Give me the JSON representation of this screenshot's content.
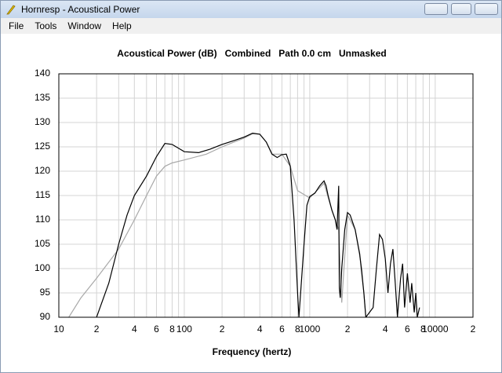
{
  "window": {
    "title": "Hornresp - Acoustical Power",
    "menu": [
      "File",
      "Tools",
      "Window",
      "Help"
    ]
  },
  "chart_data": {
    "type": "line",
    "title": "Acoustical Power (dB)   Combined   Path 0.0 cm   Unmasked",
    "xlabel": "Frequency (hertz)",
    "xscale": "log",
    "grid": true,
    "xlim": [
      10,
      20000
    ],
    "ylim": [
      90,
      140
    ],
    "xticks": [
      10,
      {
        "value": 20,
        "label": "2"
      },
      {
        "value": 40,
        "label": "4"
      },
      {
        "value": 60,
        "label": "6"
      },
      {
        "value": 80,
        "label": "8"
      },
      100,
      {
        "value": 200,
        "label": "2"
      },
      {
        "value": 400,
        "label": "4"
      },
      {
        "value": 600,
        "label": "6"
      },
      {
        "value": 800,
        "label": "8"
      },
      1000,
      {
        "value": 2000,
        "label": "2"
      },
      {
        "value": 4000,
        "label": "4"
      },
      {
        "value": 6000,
        "label": "6"
      },
      {
        "value": 8000,
        "label": "8"
      },
      10000,
      {
        "value": 20000,
        "label": "2"
      }
    ],
    "xminorticks": [
      30,
      50,
      70,
      90,
      300,
      500,
      700,
      900,
      3000,
      5000,
      7000,
      9000
    ],
    "yticks": [
      90,
      95,
      100,
      105,
      110,
      115,
      120,
      125,
      130,
      135,
      140
    ],
    "series": [
      {
        "name": "Unmasked",
        "color": "#a8a8a8",
        "x": [
          12,
          15,
          20,
          30,
          40,
          50,
          60,
          70,
          80,
          100,
          150,
          200,
          300,
          350,
          400,
          450,
          500,
          600,
          700,
          800,
          1000,
          1300,
          1500,
          1700,
          1800,
          2000,
          2300,
          2600,
          2800
        ],
        "values": [
          90,
          94,
          98,
          104,
          110,
          115,
          119,
          121,
          121.7,
          122.3,
          123.5,
          125,
          126.8,
          127.7,
          127.6,
          126,
          123.5,
          123.5,
          121,
          116,
          114.5,
          117.5,
          112,
          108,
          93,
          111,
          108,
          100,
          90
        ]
      },
      {
        "name": "Combined",
        "color": "#000000",
        "x": [
          20,
          25,
          30,
          35,
          40,
          50,
          60,
          70,
          80,
          100,
          130,
          160,
          200,
          250,
          300,
          350,
          400,
          450,
          500,
          550,
          600,
          650,
          700,
          750,
          800,
          820,
          900,
          950,
          1000,
          1100,
          1200,
          1300,
          1350,
          1400,
          1500,
          1600,
          1650,
          1700,
          1720,
          1750,
          1800,
          1900,
          2000,
          2100,
          2300,
          2500,
          2700,
          2800,
          3200,
          3400,
          3600,
          3800,
          4000,
          4200,
          4400,
          4600,
          4800,
          5000,
          5300,
          5500,
          5700,
          6000,
          6300,
          6500,
          6800,
          7000,
          7200,
          7500
        ],
        "values": [
          90,
          97,
          105,
          111,
          115,
          119,
          123,
          125.7,
          125.5,
          124,
          123.8,
          124.5,
          125.5,
          126.3,
          127,
          127.8,
          127.6,
          126,
          123.5,
          122.8,
          123.4,
          123.5,
          121,
          110,
          95,
          90,
          105,
          113,
          114.8,
          115.5,
          117,
          118,
          117,
          115,
          112,
          110,
          108,
          117,
          96,
          94,
          100,
          108,
          111.5,
          111,
          108,
          103,
          95,
          90,
          92,
          100,
          107,
          106,
          102,
          95,
          101,
          104,
          97,
          90,
          98,
          101,
          92,
          99,
          93,
          97,
          91,
          95,
          90,
          92
        ]
      }
    ]
  }
}
